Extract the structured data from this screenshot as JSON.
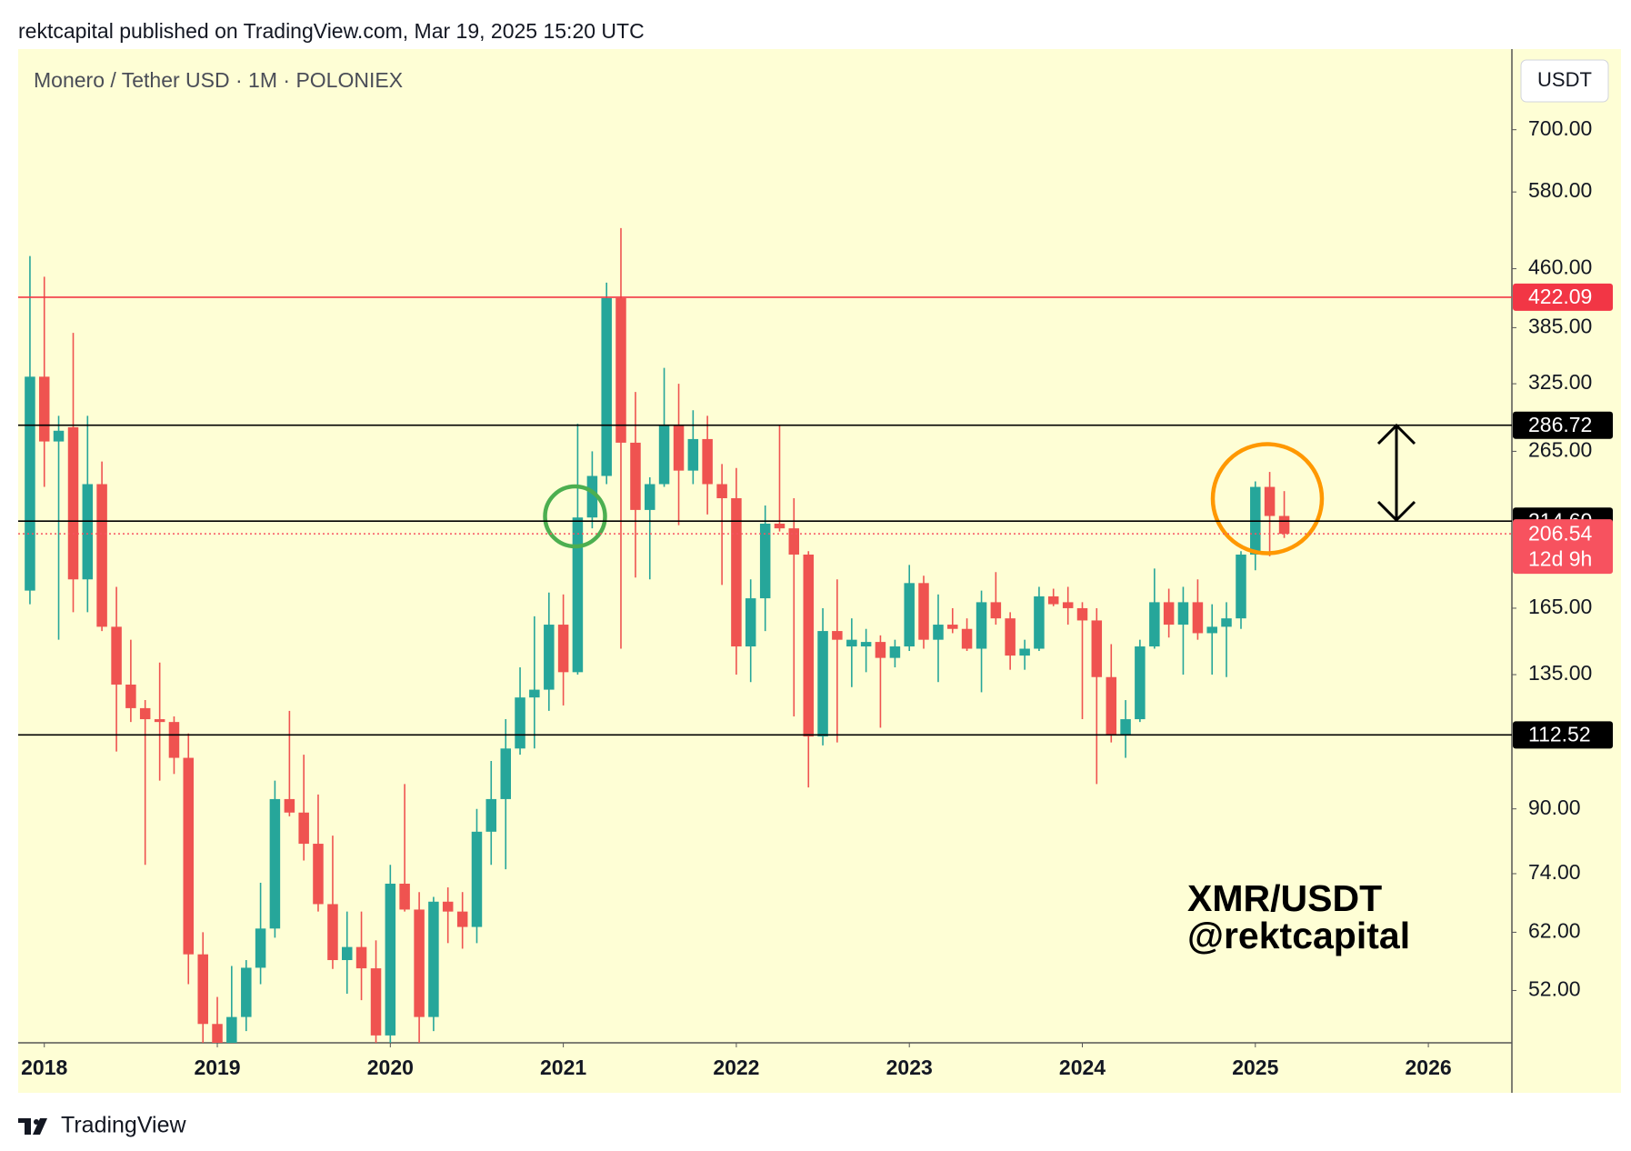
{
  "header": "rektcapital published on TradingView.com, Mar 19, 2025 15:20 UTC",
  "brand": "TradingView",
  "chart_data": {
    "type": "candlestick",
    "title": "Monero / Tether USD · 1M · POLONIEX",
    "currency": "USDT",
    "log_scale": true,
    "grid": false,
    "up_color": "#26a69a",
    "down_color": "#ef5350",
    "x": [
      2017.917,
      2018.0,
      2018.083,
      2018.167,
      2018.25,
      2018.333,
      2018.417,
      2018.5,
      2018.583,
      2018.667,
      2018.75,
      2018.833,
      2018.917,
      2019.0,
      2019.083,
      2019.167,
      2019.25,
      2019.333,
      2019.417,
      2019.5,
      2019.583,
      2019.667,
      2019.75,
      2019.833,
      2019.917,
      2020.0,
      2020.083,
      2020.167,
      2020.25,
      2020.333,
      2020.417,
      2020.5,
      2020.583,
      2020.667,
      2020.75,
      2020.833,
      2020.917,
      2021.0,
      2021.083,
      2021.167,
      2021.25,
      2021.333,
      2021.417,
      2021.5,
      2021.583,
      2021.667,
      2021.75,
      2021.833,
      2021.917,
      2022.0,
      2022.083,
      2022.167,
      2022.25,
      2022.333,
      2022.417,
      2022.5,
      2022.583,
      2022.667,
      2022.75,
      2022.833,
      2022.917,
      2023.0,
      2023.083,
      2023.167,
      2023.25,
      2023.333,
      2023.417,
      2023.5,
      2023.583,
      2023.667,
      2023.75,
      2023.833,
      2023.917,
      2024.0,
      2024.083,
      2024.167,
      2024.25,
      2024.333,
      2024.417,
      2024.5,
      2024.583,
      2024.667,
      2024.75,
      2024.833,
      2024.917,
      2025.0,
      2025.083,
      2025.167
    ],
    "open": [
      174,
      332,
      273,
      285,
      180,
      240,
      156,
      131,
      122,
      118,
      117,
      105,
      58,
      47,
      44,
      48,
      55.7,
      62.7,
      92.7,
      89,
      81,
      67.5,
      57,
      59.3,
      55.6,
      45.4,
      71.8,
      66.4,
      48,
      68,
      66,
      63,
      84,
      92.7,
      108,
      126,
      129,
      157,
      136,
      217,
      246,
      421,
      272,
      222,
      240,
      287,
      250,
      275,
      240,
      230,
      147,
      170,
      213,
      210,
      194,
      112,
      154,
      147,
      147,
      149,
      142,
      147,
      178,
      150,
      157,
      155,
      146,
      168,
      160,
      143,
      146,
      171,
      168,
      165,
      159,
      134,
      112.5,
      118,
      147,
      168,
      157,
      168,
      153,
      156,
      160,
      194,
      238,
      218
    ],
    "high": [
      478,
      449,
      295,
      379,
      295,
      257,
      176,
      150,
      125,
      140,
      119,
      113,
      62,
      51,
      56,
      57,
      72,
      98,
      121,
      106,
      94,
      83,
      66,
      66,
      60.5,
      76,
      97,
      70,
      69,
      71,
      70,
      90,
      104,
      118,
      138,
      161,
      173,
      172,
      288,
      265,
      441,
      520,
      317,
      245,
      341,
      325,
      300,
      295,
      255,
      252,
      180,
      225,
      287,
      230,
      196,
      165,
      180,
      160,
      155,
      152,
      150,
      188,
      182,
      172,
      165,
      160,
      174,
      184,
      163,
      150,
      176,
      175,
      176,
      168,
      165,
      148,
      125,
      150,
      186,
      175,
      176,
      180,
      167,
      168,
      196,
      242,
      249,
      235
    ],
    "low": [
      167,
      238,
      150,
      163,
      163,
      154,
      107,
      117,
      76,
      98,
      100,
      53,
      39,
      40,
      42,
      46,
      53,
      61,
      88,
      77,
      66,
      55.5,
      51.5,
      50.5,
      43,
      44,
      66,
      43,
      46,
      60,
      59,
      60,
      76,
      75,
      106,
      108,
      121,
      123,
      135,
      210,
      240,
      146,
      181,
      180,
      238,
      212,
      240,
      219,
      177,
      135,
      132,
      154,
      208,
      119,
      96,
      109,
      110,
      130,
      136,
      115,
      138,
      145,
      146,
      132,
      153,
      145,
      128,
      157,
      137,
      137,
      145,
      166,
      157,
      118,
      97,
      110,
      105,
      117,
      146,
      151,
      135,
      150,
      135,
      134,
      155,
      185,
      193,
      204
    ],
    "close": [
      332,
      273,
      282,
      180,
      240,
      156,
      131,
      122,
      118,
      117,
      105,
      58,
      47,
      44,
      48,
      55.7,
      62.7,
      92.7,
      89,
      81,
      67.5,
      57,
      59.3,
      55.6,
      45.4,
      71.8,
      66.4,
      48,
      68,
      66,
      63,
      84,
      92.7,
      108,
      126,
      129,
      157,
      136,
      217,
      246,
      421,
      272,
      222,
      240,
      287,
      250,
      275,
      240,
      230,
      147,
      170,
      213,
      210,
      194,
      112,
      154,
      150,
      150,
      149,
      142,
      147,
      178,
      150,
      157,
      155,
      146,
      168,
      160,
      143,
      146,
      171,
      167,
      165,
      159,
      134,
      112.5,
      118,
      147,
      168,
      157,
      168,
      153,
      156,
      160,
      194,
      238,
      218,
      206.54
    ],
    "countdown": "12d 9h",
    "xlim": [
      2017.849,
      2026.483
    ],
    "xticks": [
      2018,
      2019,
      2020,
      2021,
      2022,
      2023,
      2024,
      2025,
      2026
    ],
    "ylim": [
      44.4,
      893
    ],
    "yticks": [
      {
        "value": 700,
        "label": "700.00"
      },
      {
        "value": 580,
        "label": "580.00"
      },
      {
        "value": 460,
        "label": "460.00"
      },
      {
        "value": 385,
        "label": "385.00"
      },
      {
        "value": 325,
        "label": "325.00"
      },
      {
        "value": 265,
        "label": "265.00"
      },
      {
        "value": 165,
        "label": "165.00"
      },
      {
        "value": 135,
        "label": "135.00"
      },
      {
        "value": 90,
        "label": "90.00"
      },
      {
        "value": 74,
        "label": "74.00"
      },
      {
        "value": 62,
        "label": "62.00"
      },
      {
        "value": 52,
        "label": "52.00"
      }
    ],
    "levels": [
      {
        "value": 422.09,
        "label": "422.09",
        "color": "#f23645"
      },
      {
        "value": 286.72,
        "label": "286.72",
        "color": "#000000"
      },
      {
        "value": 214.6,
        "label": "214.60",
        "color": "#000000"
      },
      {
        "value": 112.52,
        "label": "112.52",
        "color": "#000000"
      }
    ],
    "last_color": "#f7525f",
    "watermark": [
      "XMR/USDT",
      "@rektcapital"
    ]
  }
}
